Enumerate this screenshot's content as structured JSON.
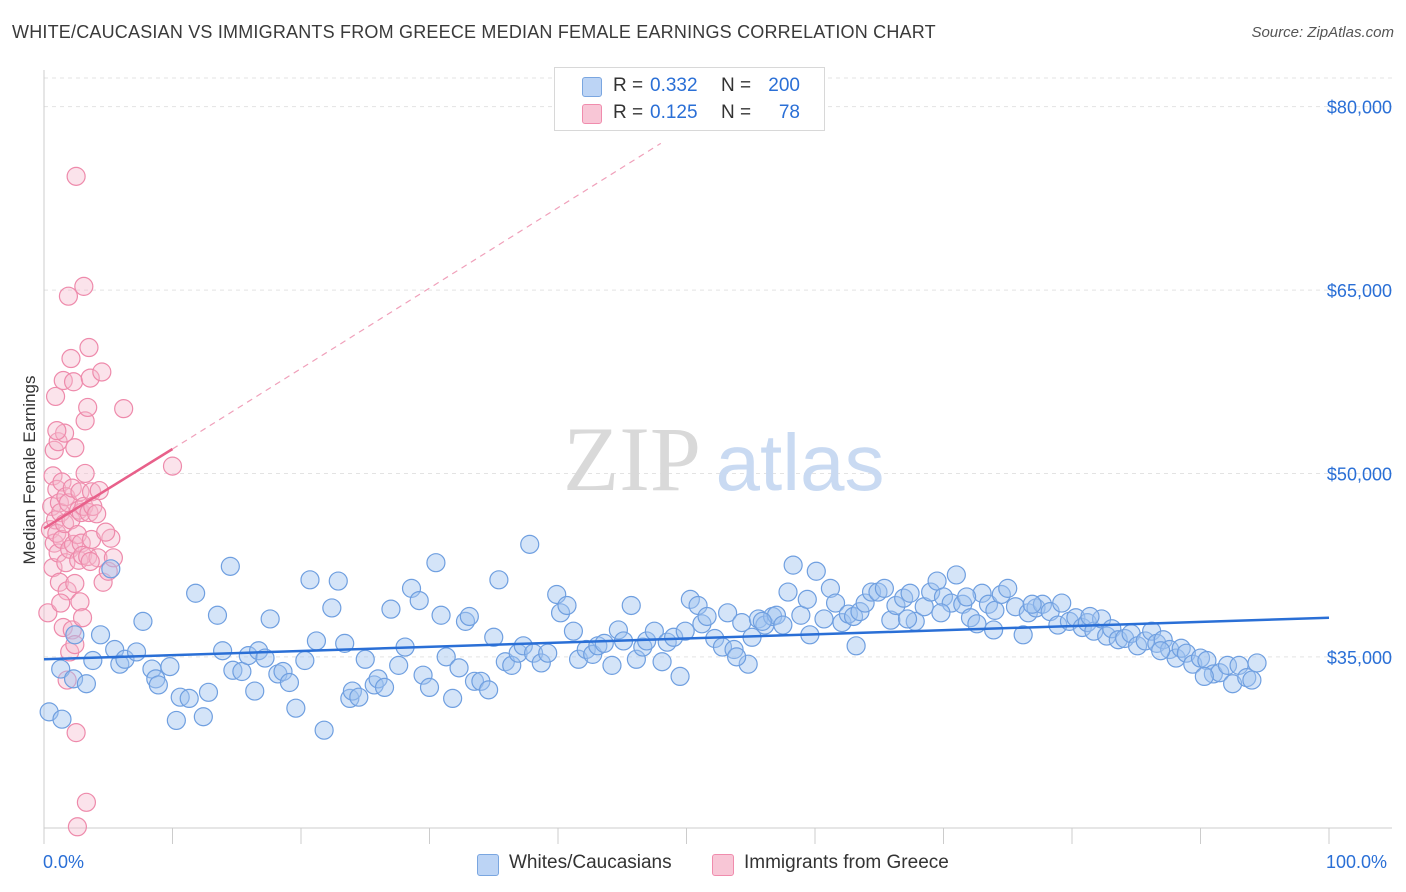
{
  "title": "WHITE/CAUCASIAN VS IMMIGRANTS FROM GREECE MEDIAN FEMALE EARNINGS CORRELATION CHART",
  "source": "Source: ZipAtlas.com",
  "watermark": {
    "zip": "ZIP",
    "atlas": "atlas"
  },
  "legend": {
    "rows": [
      {
        "r_label": "R =",
        "r_value": "0.332",
        "n_label": "N =",
        "n_value": "200",
        "color": "#7aa6e0",
        "fill": "#bcd4f5"
      },
      {
        "r_label": "R =",
        "r_value": "0.125",
        "n_label": "N =",
        "n_value": "78",
        "color": "#f08cad",
        "fill": "#f8c6d6"
      }
    ]
  },
  "bottom_legend": [
    {
      "label": "Whites/Caucasians",
      "color": "#7aa6e0",
      "fill": "#bcd4f5"
    },
    {
      "label": "Immigrants from Greece",
      "color": "#f08cad",
      "fill": "#f8c6d6"
    }
  ],
  "colors": {
    "blue": "#2a6fd6",
    "pink": "#e8608a",
    "grid": "#dddddd",
    "axis_text": "#2a6fd6"
  },
  "chart_data": {
    "type": "scatter",
    "title": "WHITE/CAUCASIAN VS IMMIGRANTS FROM GREECE MEDIAN FEMALE EARNINGS CORRELATION CHART",
    "xlabel": "",
    "ylabel": "Median Female Earnings",
    "x_tick_labels": [
      "0.0%",
      "100.0%"
    ],
    "y_tick_labels": [
      "$35,000",
      "$50,000",
      "$65,000",
      "$80,000"
    ],
    "y_ticks": [
      35000,
      50000,
      65000,
      80000
    ],
    "xlim": [
      0,
      100
    ],
    "ylim": [
      21000,
      83000
    ],
    "grid": true,
    "legend_position": "top-center",
    "series": [
      {
        "name": "Whites/Caucasians",
        "trend": {
          "x": [
            0,
            100
          ],
          "y": [
            34800,
            38200
          ],
          "style": "solid"
        },
        "points": [
          [
            0.4,
            30500
          ],
          [
            1.3,
            34000
          ],
          [
            1.4,
            29900
          ],
          [
            2.3,
            33200
          ],
          [
            2.4,
            36800
          ],
          [
            3.3,
            32800
          ],
          [
            3.8,
            34700
          ],
          [
            4.4,
            36800
          ],
          [
            5.2,
            42200
          ],
          [
            5.5,
            35600
          ],
          [
            5.9,
            34400
          ],
          [
            6.3,
            34800
          ],
          [
            7.2,
            35400
          ],
          [
            7.7,
            37900
          ],
          [
            8.4,
            34000
          ],
          [
            8.7,
            33200
          ],
          [
            8.9,
            32700
          ],
          [
            9.8,
            34200
          ],
          [
            10.3,
            29800
          ],
          [
            10.6,
            31700
          ],
          [
            11.3,
            31600
          ],
          [
            11.8,
            40200
          ],
          [
            12.4,
            30100
          ],
          [
            12.8,
            32100
          ],
          [
            13.5,
            38400
          ],
          [
            13.9,
            35500
          ],
          [
            14.5,
            42400
          ],
          [
            14.7,
            33900
          ],
          [
            15.4,
            33800
          ],
          [
            15.9,
            35100
          ],
          [
            16.4,
            32200
          ],
          [
            16.7,
            35500
          ],
          [
            17.2,
            34900
          ],
          [
            17.6,
            38100
          ],
          [
            18.2,
            33600
          ],
          [
            18.6,
            33800
          ],
          [
            19.1,
            32900
          ],
          [
            19.6,
            30800
          ],
          [
            20.3,
            34700
          ],
          [
            20.7,
            41300
          ],
          [
            21.2,
            36300
          ],
          [
            21.8,
            29000
          ],
          [
            22.4,
            39000
          ],
          [
            22.9,
            41200
          ],
          [
            23.4,
            36100
          ],
          [
            23.8,
            31600
          ],
          [
            24.0,
            32200
          ],
          [
            24.5,
            31700
          ],
          [
            25.0,
            34800
          ],
          [
            25.7,
            32700
          ],
          [
            26.0,
            33200
          ],
          [
            26.5,
            32500
          ],
          [
            27.0,
            38900
          ],
          [
            27.6,
            34300
          ],
          [
            28.1,
            35800
          ],
          [
            28.6,
            40600
          ],
          [
            29.2,
            39600
          ],
          [
            29.5,
            33500
          ],
          [
            30.0,
            32500
          ],
          [
            30.5,
            42700
          ],
          [
            30.9,
            38400
          ],
          [
            31.3,
            35000
          ],
          [
            31.8,
            31600
          ],
          [
            32.3,
            34100
          ],
          [
            32.8,
            37900
          ],
          [
            33.1,
            38300
          ],
          [
            33.5,
            33000
          ],
          [
            34.0,
            33000
          ],
          [
            34.6,
            32300
          ],
          [
            35.0,
            36600
          ],
          [
            35.4,
            41300
          ],
          [
            35.9,
            34600
          ],
          [
            36.4,
            34300
          ],
          [
            36.9,
            35300
          ],
          [
            37.3,
            35900
          ],
          [
            37.8,
            44200
          ],
          [
            38.1,
            35300
          ],
          [
            38.7,
            34500
          ],
          [
            39.2,
            35300
          ],
          [
            39.9,
            40100
          ],
          [
            40.2,
            38600
          ],
          [
            40.7,
            39200
          ],
          [
            41.2,
            37100
          ],
          [
            41.6,
            34800
          ],
          [
            42.2,
            35600
          ],
          [
            42.7,
            35200
          ],
          [
            43.1,
            35900
          ],
          [
            43.6,
            36100
          ],
          [
            44.2,
            34300
          ],
          [
            44.7,
            37200
          ],
          [
            45.1,
            36300
          ],
          [
            45.7,
            39200
          ],
          [
            46.1,
            34800
          ],
          [
            46.6,
            35800
          ],
          [
            46.9,
            36300
          ],
          [
            47.5,
            37100
          ],
          [
            48.1,
            34600
          ],
          [
            48.5,
            36200
          ],
          [
            49.0,
            36600
          ],
          [
            49.5,
            33400
          ],
          [
            49.9,
            37100
          ],
          [
            50.3,
            39700
          ],
          [
            50.9,
            39200
          ],
          [
            51.2,
            37700
          ],
          [
            51.6,
            38300
          ],
          [
            52.2,
            36500
          ],
          [
            52.8,
            35800
          ],
          [
            53.2,
            38600
          ],
          [
            53.7,
            35600
          ],
          [
            54.3,
            37800
          ],
          [
            54.8,
            34400
          ],
          [
            55.1,
            36600
          ],
          [
            55.6,
            38100
          ],
          [
            56.1,
            37600
          ],
          [
            56.7,
            38300
          ],
          [
            57.0,
            38400
          ],
          [
            57.5,
            37600
          ],
          [
            57.9,
            40300
          ],
          [
            58.3,
            42500
          ],
          [
            58.9,
            38400
          ],
          [
            59.4,
            39700
          ],
          [
            59.6,
            36800
          ],
          [
            60.1,
            42000
          ],
          [
            60.7,
            38100
          ],
          [
            61.2,
            40600
          ],
          [
            61.6,
            39400
          ],
          [
            62.1,
            37800
          ],
          [
            62.6,
            38500
          ],
          [
            63.0,
            38300
          ],
          [
            63.5,
            38700
          ],
          [
            63.9,
            39400
          ],
          [
            64.4,
            40300
          ],
          [
            64.9,
            40300
          ],
          [
            65.4,
            40600
          ],
          [
            65.9,
            38000
          ],
          [
            66.3,
            39200
          ],
          [
            66.9,
            39800
          ],
          [
            67.4,
            40200
          ],
          [
            67.8,
            37900
          ],
          [
            68.5,
            39100
          ],
          [
            69.0,
            40300
          ],
          [
            69.5,
            41200
          ],
          [
            70.0,
            39900
          ],
          [
            70.6,
            39400
          ],
          [
            71.0,
            41700
          ],
          [
            71.5,
            39300
          ],
          [
            72.1,
            38200
          ],
          [
            72.6,
            37700
          ],
          [
            73.0,
            40200
          ],
          [
            73.5,
            39300
          ],
          [
            74.0,
            38800
          ],
          [
            74.5,
            40100
          ],
          [
            75.0,
            40600
          ],
          [
            75.6,
            39100
          ],
          [
            76.2,
            36800
          ],
          [
            76.6,
            38600
          ],
          [
            77.2,
            39000
          ],
          [
            77.7,
            39300
          ],
          [
            78.3,
            38700
          ],
          [
            78.9,
            37600
          ],
          [
            79.2,
            39400
          ],
          [
            79.8,
            37900
          ],
          [
            80.3,
            38200
          ],
          [
            80.8,
            37400
          ],
          [
            81.2,
            37800
          ],
          [
            81.7,
            37100
          ],
          [
            82.3,
            38100
          ],
          [
            82.7,
            36700
          ],
          [
            83.1,
            37300
          ],
          [
            83.6,
            36400
          ],
          [
            84.1,
            36500
          ],
          [
            84.6,
            36900
          ],
          [
            85.1,
            35900
          ],
          [
            85.7,
            36300
          ],
          [
            86.2,
            37100
          ],
          [
            86.6,
            36100
          ],
          [
            87.1,
            36400
          ],
          [
            87.6,
            35600
          ],
          [
            88.1,
            34900
          ],
          [
            88.5,
            35700
          ],
          [
            88.9,
            35300
          ],
          [
            89.4,
            34400
          ],
          [
            90.0,
            34900
          ],
          [
            90.5,
            34700
          ],
          [
            91.0,
            33600
          ],
          [
            91.5,
            33700
          ],
          [
            92.1,
            34300
          ],
          [
            92.5,
            32800
          ],
          [
            93.0,
            34300
          ],
          [
            93.6,
            33300
          ],
          [
            94.0,
            33100
          ],
          [
            94.4,
            34500
          ],
          [
            76.9,
            39300
          ],
          [
            53.9,
            35000
          ],
          [
            55.9,
            37900
          ],
          [
            63.2,
            35900
          ],
          [
            67.2,
            38100
          ],
          [
            69.8,
            38600
          ],
          [
            71.8,
            39900
          ],
          [
            73.9,
            37200
          ],
          [
            81.4,
            38300
          ],
          [
            86.9,
            35500
          ],
          [
            90.3,
            33400
          ]
        ]
      },
      {
        "name": "Immigrants from Greece",
        "trend": {
          "x": [
            0,
            10
          ],
          "y": [
            45500,
            52000
          ],
          "style": "solid",
          "extension_to": [
            48,
            77000
          ],
          "extension_style": "dashed"
        },
        "points": [
          [
            0.3,
            38600
          ],
          [
            0.5,
            45400
          ],
          [
            0.6,
            47300
          ],
          [
            0.7,
            42300
          ],
          [
            0.7,
            49800
          ],
          [
            0.8,
            44300
          ],
          [
            0.8,
            51900
          ],
          [
            0.9,
            46200
          ],
          [
            0.9,
            56300
          ],
          [
            1.0,
            45100
          ],
          [
            1.0,
            48700
          ],
          [
            1.1,
            43500
          ],
          [
            1.1,
            52600
          ],
          [
            1.2,
            47600
          ],
          [
            1.2,
            41100
          ],
          [
            1.3,
            46800
          ],
          [
            1.4,
            49300
          ],
          [
            1.4,
            44600
          ],
          [
            1.5,
            37400
          ],
          [
            1.5,
            57600
          ],
          [
            1.6,
            45900
          ],
          [
            1.6,
            53300
          ],
          [
            1.7,
            42700
          ],
          [
            1.7,
            48100
          ],
          [
            1.8,
            40400
          ],
          [
            1.8,
            33100
          ],
          [
            1.9,
            64500
          ],
          [
            1.9,
            47600
          ],
          [
            2.0,
            43800
          ],
          [
            2.0,
            35400
          ],
          [
            2.1,
            46200
          ],
          [
            2.1,
            59400
          ],
          [
            2.2,
            48800
          ],
          [
            2.2,
            37200
          ],
          [
            2.3,
            44200
          ],
          [
            2.3,
            57500
          ],
          [
            2.4,
            41000
          ],
          [
            2.4,
            52100
          ],
          [
            2.5,
            74300
          ],
          [
            2.5,
            28800
          ],
          [
            2.6,
            21100
          ],
          [
            2.6,
            45000
          ],
          [
            2.7,
            47000
          ],
          [
            2.7,
            42900
          ],
          [
            2.8,
            48500
          ],
          [
            2.8,
            39500
          ],
          [
            2.9,
            46800
          ],
          [
            2.9,
            44300
          ],
          [
            3.0,
            43300
          ],
          [
            3.0,
            38200
          ],
          [
            3.1,
            47300
          ],
          [
            3.1,
            65300
          ],
          [
            3.2,
            50000
          ],
          [
            3.2,
            54300
          ],
          [
            3.3,
            23100
          ],
          [
            3.4,
            55400
          ],
          [
            3.4,
            43200
          ],
          [
            3.5,
            46800
          ],
          [
            3.5,
            60300
          ],
          [
            3.6,
            57800
          ],
          [
            3.7,
            48500
          ],
          [
            3.7,
            44600
          ],
          [
            3.8,
            47300
          ],
          [
            4.1,
            46700
          ],
          [
            4.2,
            43100
          ],
          [
            4.3,
            48600
          ],
          [
            4.5,
            58300
          ],
          [
            4.6,
            41100
          ],
          [
            5.0,
            42000
          ],
          [
            5.2,
            44700
          ],
          [
            5.4,
            43100
          ],
          [
            6.2,
            55300
          ],
          [
            10.0,
            50600
          ],
          [
            1.0,
            53500
          ],
          [
            1.3,
            39400
          ],
          [
            2.4,
            36000
          ],
          [
            3.6,
            42800
          ],
          [
            4.8,
            45200
          ]
        ]
      }
    ]
  }
}
